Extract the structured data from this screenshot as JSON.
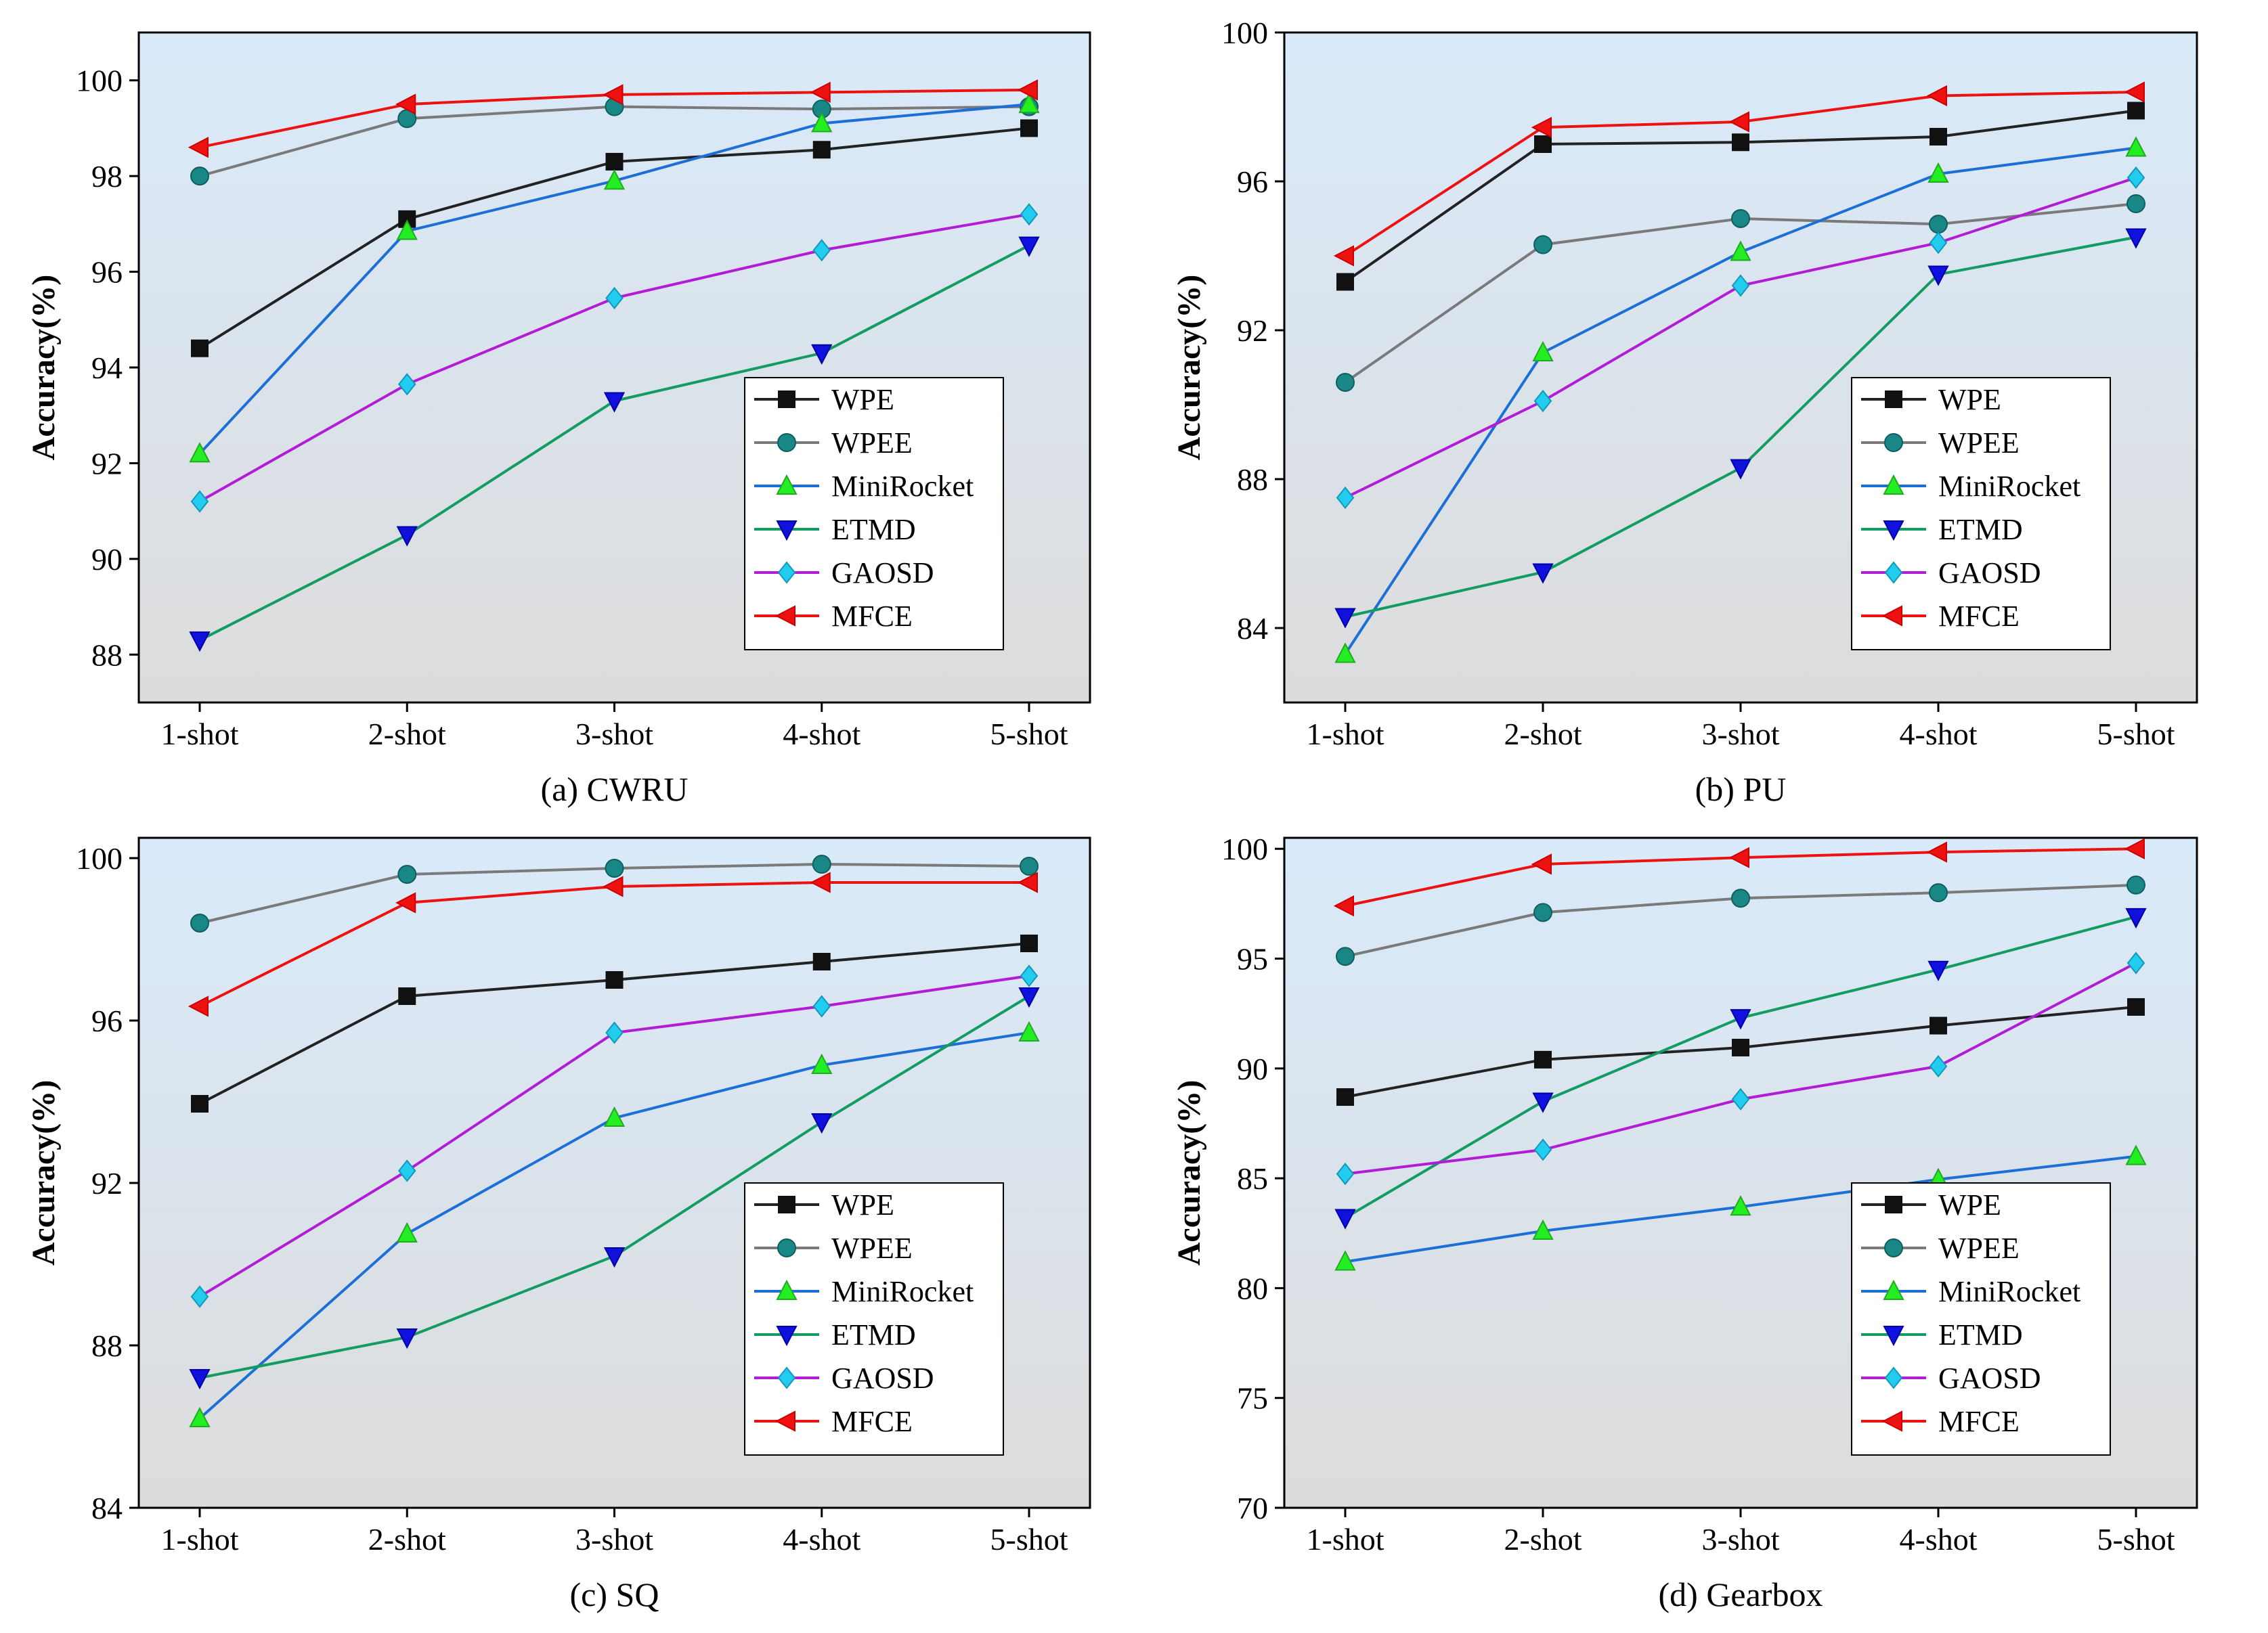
{
  "legend_series": [
    "WPE",
    "WPEE",
    "MiniRocket",
    "ETMD",
    "GAOSD",
    "MFCE"
  ],
  "series_colors": {
    "WPE": "#222222",
    "WPEE": "#7a7a7a",
    "MiniRocket": "#1c6fd6",
    "ETMD": "#129c62",
    "GAOSD": "#b21cd6",
    "MFCE": "#ee1111"
  },
  "chart_data": [
    {
      "type": "line",
      "caption": "(a) CWRU",
      "ylabel": "Accuracy(%)",
      "categories": [
        "1-shot",
        "2-shot",
        "3-shot",
        "4-shot",
        "5-shot"
      ],
      "ylim": [
        87,
        101
      ],
      "yticks": [
        88,
        90,
        92,
        94,
        96,
        98,
        100
      ],
      "legend_position": "lower-right",
      "series": [
        {
          "name": "WPE",
          "values": [
            94.4,
            97.1,
            98.3,
            98.55,
            99.0
          ]
        },
        {
          "name": "WPEE",
          "values": [
            98.0,
            99.2,
            99.45,
            99.4,
            99.45
          ]
        },
        {
          "name": "MiniRocket",
          "values": [
            92.2,
            96.85,
            97.9,
            99.1,
            99.5
          ]
        },
        {
          "name": "ETMD",
          "values": [
            88.3,
            90.5,
            93.3,
            94.3,
            96.55
          ]
        },
        {
          "name": "GAOSD",
          "values": [
            91.2,
            93.65,
            95.45,
            96.45,
            97.2
          ]
        },
        {
          "name": "MFCE",
          "values": [
            98.6,
            99.5,
            99.7,
            99.75,
            99.8
          ]
        }
      ]
    },
    {
      "type": "line",
      "caption": "(b) PU",
      "ylabel": "Accuracy(%)",
      "categories": [
        "1-shot",
        "2-shot",
        "3-shot",
        "4-shot",
        "5-shot"
      ],
      "ylim": [
        82,
        100
      ],
      "yticks": [
        84,
        88,
        92,
        96,
        100
      ],
      "legend_position": "lower-right",
      "series": [
        {
          "name": "WPE",
          "values": [
            93.3,
            97.0,
            97.05,
            97.2,
            97.9
          ]
        },
        {
          "name": "WPEE",
          "values": [
            90.6,
            94.3,
            95.0,
            94.85,
            95.4
          ]
        },
        {
          "name": "MiniRocket",
          "values": [
            83.3,
            91.4,
            94.1,
            96.2,
            96.9
          ]
        },
        {
          "name": "ETMD",
          "values": [
            84.3,
            85.5,
            88.3,
            93.5,
            94.5
          ]
        },
        {
          "name": "GAOSD",
          "values": [
            87.5,
            90.1,
            93.2,
            94.35,
            96.1
          ]
        },
        {
          "name": "MFCE",
          "values": [
            94.0,
            97.45,
            97.6,
            98.3,
            98.4
          ]
        }
      ]
    },
    {
      "type": "line",
      "caption": "(c) SQ",
      "ylabel": "Accuracy(%)",
      "categories": [
        "1-shot",
        "2-shot",
        "3-shot",
        "4-shot",
        "5-shot"
      ],
      "ylim": [
        84,
        100.5
      ],
      "yticks": [
        84,
        88,
        92,
        96,
        100
      ],
      "legend_position": "lower-right",
      "series": [
        {
          "name": "WPE",
          "values": [
            93.95,
            96.6,
            97.0,
            97.45,
            97.9
          ]
        },
        {
          "name": "WPEE",
          "values": [
            98.4,
            99.6,
            99.75,
            99.85,
            99.8
          ]
        },
        {
          "name": "MiniRocket",
          "values": [
            86.2,
            90.75,
            93.6,
            94.9,
            95.7
          ]
        },
        {
          "name": "ETMD",
          "values": [
            87.2,
            88.2,
            90.2,
            93.5,
            96.6
          ]
        },
        {
          "name": "GAOSD",
          "values": [
            89.2,
            92.3,
            95.7,
            96.35,
            97.1
          ]
        },
        {
          "name": "MFCE",
          "values": [
            96.35,
            98.9,
            99.3,
            99.4,
            99.4
          ]
        }
      ]
    },
    {
      "type": "line",
      "caption": "(d) Gearbox",
      "ylabel": "Accuracy(%)",
      "categories": [
        "1-shot",
        "2-shot",
        "3-shot",
        "4-shot",
        "5-shot"
      ],
      "ylim": [
        70,
        100.5
      ],
      "yticks": [
        70,
        75,
        80,
        85,
        90,
        95,
        100
      ],
      "legend_position": "lower-right",
      "series": [
        {
          "name": "WPE",
          "values": [
            88.7,
            90.4,
            90.95,
            91.95,
            92.8
          ]
        },
        {
          "name": "WPEE",
          "values": [
            95.1,
            97.1,
            97.75,
            98.0,
            98.35
          ]
        },
        {
          "name": "MiniRocket",
          "values": [
            81.2,
            82.6,
            83.7,
            84.95,
            86.0
          ]
        },
        {
          "name": "ETMD",
          "values": [
            83.2,
            88.5,
            92.3,
            94.5,
            96.9
          ]
        },
        {
          "name": "GAOSD",
          "values": [
            85.2,
            86.3,
            88.6,
            90.1,
            94.8
          ]
        },
        {
          "name": "MFCE",
          "values": [
            97.4,
            99.3,
            99.6,
            99.85,
            100.0
          ]
        }
      ]
    }
  ]
}
